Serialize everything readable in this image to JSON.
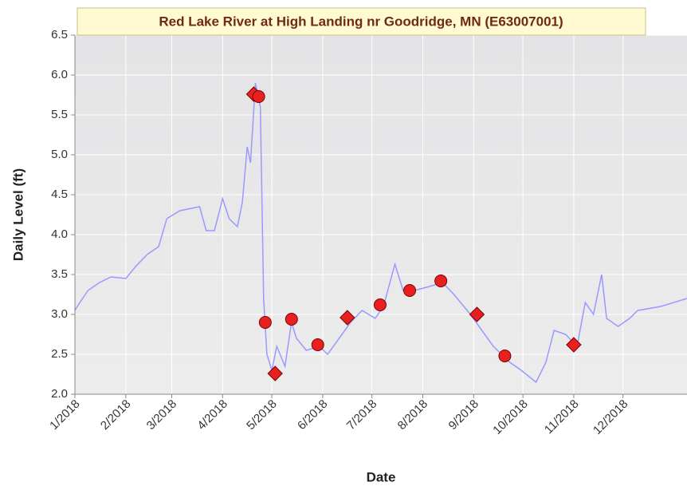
{
  "chart_data": {
    "type": "line",
    "title": "Red Lake River at High Landing nr Goodridge, MN (E63007001)",
    "x_label": "Date",
    "y_label": "Daily Level (ft)",
    "xlim": [
      0,
      373
    ],
    "ylim": [
      2,
      6.5
    ],
    "xticks": [
      {
        "value": 0,
        "label": "1/2018"
      },
      {
        "value": 31,
        "label": "2/2018"
      },
      {
        "value": 59,
        "label": "3/2018"
      },
      {
        "value": 90,
        "label": "4/2018"
      },
      {
        "value": 120,
        "label": "5/2018"
      },
      {
        "value": 151,
        "label": "6/2018"
      },
      {
        "value": 181,
        "label": "7/2018"
      },
      {
        "value": 212,
        "label": "8/2018"
      },
      {
        "value": 243,
        "label": "9/2018"
      },
      {
        "value": 273,
        "label": "10/2018"
      },
      {
        "value": 304,
        "label": "11/2018"
      },
      {
        "value": 334,
        "label": "12/2018"
      }
    ],
    "yticks": [
      {
        "value": 2,
        "label": "2.0"
      },
      2.5,
      {
        "value": 3,
        "label": "3.0"
      },
      3.5,
      {
        "value": 4,
        "label": "4.0"
      },
      4.5,
      {
        "value": 5,
        "label": "5.0"
      },
      5.5,
      {
        "value": 6,
        "label": "6.0"
      },
      6.5
    ],
    "grid": true,
    "series": [
      {
        "color": "#9999ff",
        "marker": "none",
        "x": [
          0,
          3,
          8,
          15,
          22,
          31,
          37,
          44,
          51,
          56,
          64,
          76,
          80,
          85,
          90,
          94,
          99,
          102,
          105,
          107,
          110,
          113,
          115,
          117,
          120,
          123,
          128,
          132,
          135,
          141,
          149,
          154,
          161,
          168,
          175,
          183,
          188,
          195,
          200,
          207,
          216,
          224,
          231,
          241,
          248,
          255,
          265,
          272,
          281,
          287,
          292,
          299,
          306,
          311,
          316,
          321,
          324,
          331,
          338,
          343,
          357,
          373
        ],
        "values": [
          3.05,
          3.15,
          3.3,
          3.4,
          3.47,
          3.45,
          3.6,
          3.75,
          3.85,
          4.2,
          4.3,
          4.35,
          4.05,
          4.05,
          4.45,
          4.2,
          4.1,
          4.4,
          5.1,
          4.9,
          5.9,
          5.6,
          3.2,
          2.5,
          2.3,
          2.6,
          2.35,
          2.9,
          2.7,
          2.55,
          2.6,
          2.5,
          2.7,
          2.9,
          3.05,
          2.95,
          3.1,
          3.63,
          3.3,
          3.3,
          3.35,
          3.4,
          3.25,
          3.0,
          2.8,
          2.6,
          2.4,
          2.3,
          2.15,
          2.4,
          2.8,
          2.75,
          2.6,
          3.15,
          3.0,
          3.5,
          2.95,
          2.85,
          2.95,
          3.05,
          3.1,
          3.2
        ]
      },
      {
        "color": "#e82020",
        "marker": "diamond",
        "x": [
          109,
          122,
          166,
          245,
          304
        ],
        "values": [
          5.76,
          2.26,
          2.96,
          3.0,
          2.62
        ]
      },
      {
        "color": "#e82020",
        "marker": "circle",
        "x": [
          112,
          116,
          132,
          148,
          186,
          204,
          223,
          262
        ],
        "values": [
          5.73,
          2.9,
          2.94,
          2.62,
          3.12,
          3.3,
          3.42,
          2.48
        ]
      }
    ]
  }
}
